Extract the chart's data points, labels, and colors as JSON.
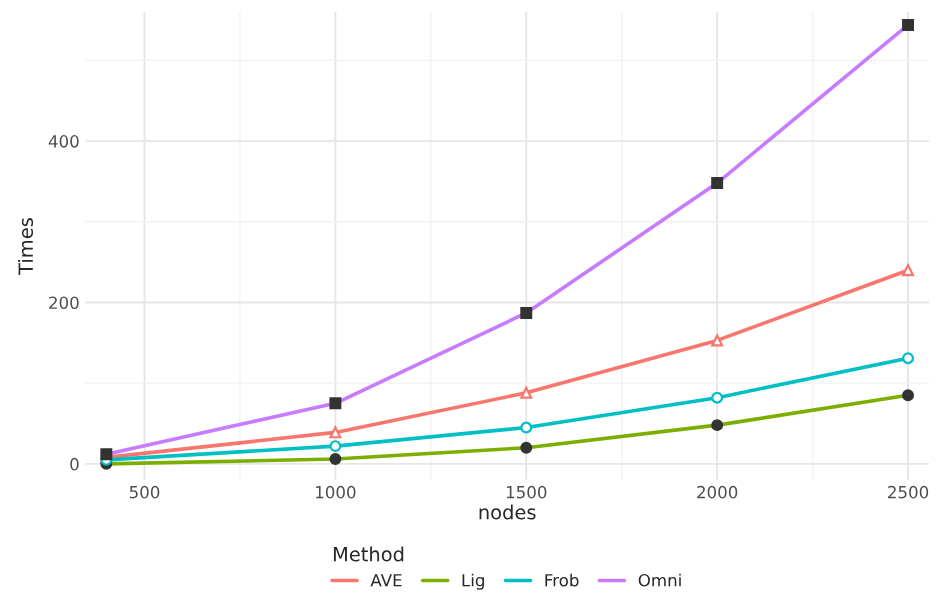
{
  "chart_data": {
    "type": "line",
    "xlabel": "nodes",
    "ylabel": "Times",
    "legend_title": "Method",
    "x": [
      400,
      1000,
      1500,
      2000,
      2500
    ],
    "series": [
      {
        "name": "AVE",
        "color": "#f8766d",
        "marker": "triangle",
        "values": [
          8,
          39,
          88,
          153,
          240
        ]
      },
      {
        "name": "Lig",
        "color": "#7cae00",
        "marker": "circle",
        "values": [
          0,
          6,
          20,
          48,
          85
        ]
      },
      {
        "name": "Frob",
        "color": "#00bfc4",
        "marker": "circle",
        "values": [
          5,
          22,
          45,
          82,
          131
        ]
      },
      {
        "name": "Omni",
        "color": "#c77cff",
        "marker": "square",
        "values": [
          12,
          75,
          187,
          348,
          544
        ]
      }
    ],
    "xlim": [
      345,
      2555
    ],
    "ylim": [
      -20,
      560
    ],
    "xticks": [
      500,
      1000,
      1500,
      2000,
      2500
    ],
    "yticks": [
      0,
      200,
      400
    ],
    "grid": true,
    "legend": "bottom",
    "line_style": "solid"
  }
}
